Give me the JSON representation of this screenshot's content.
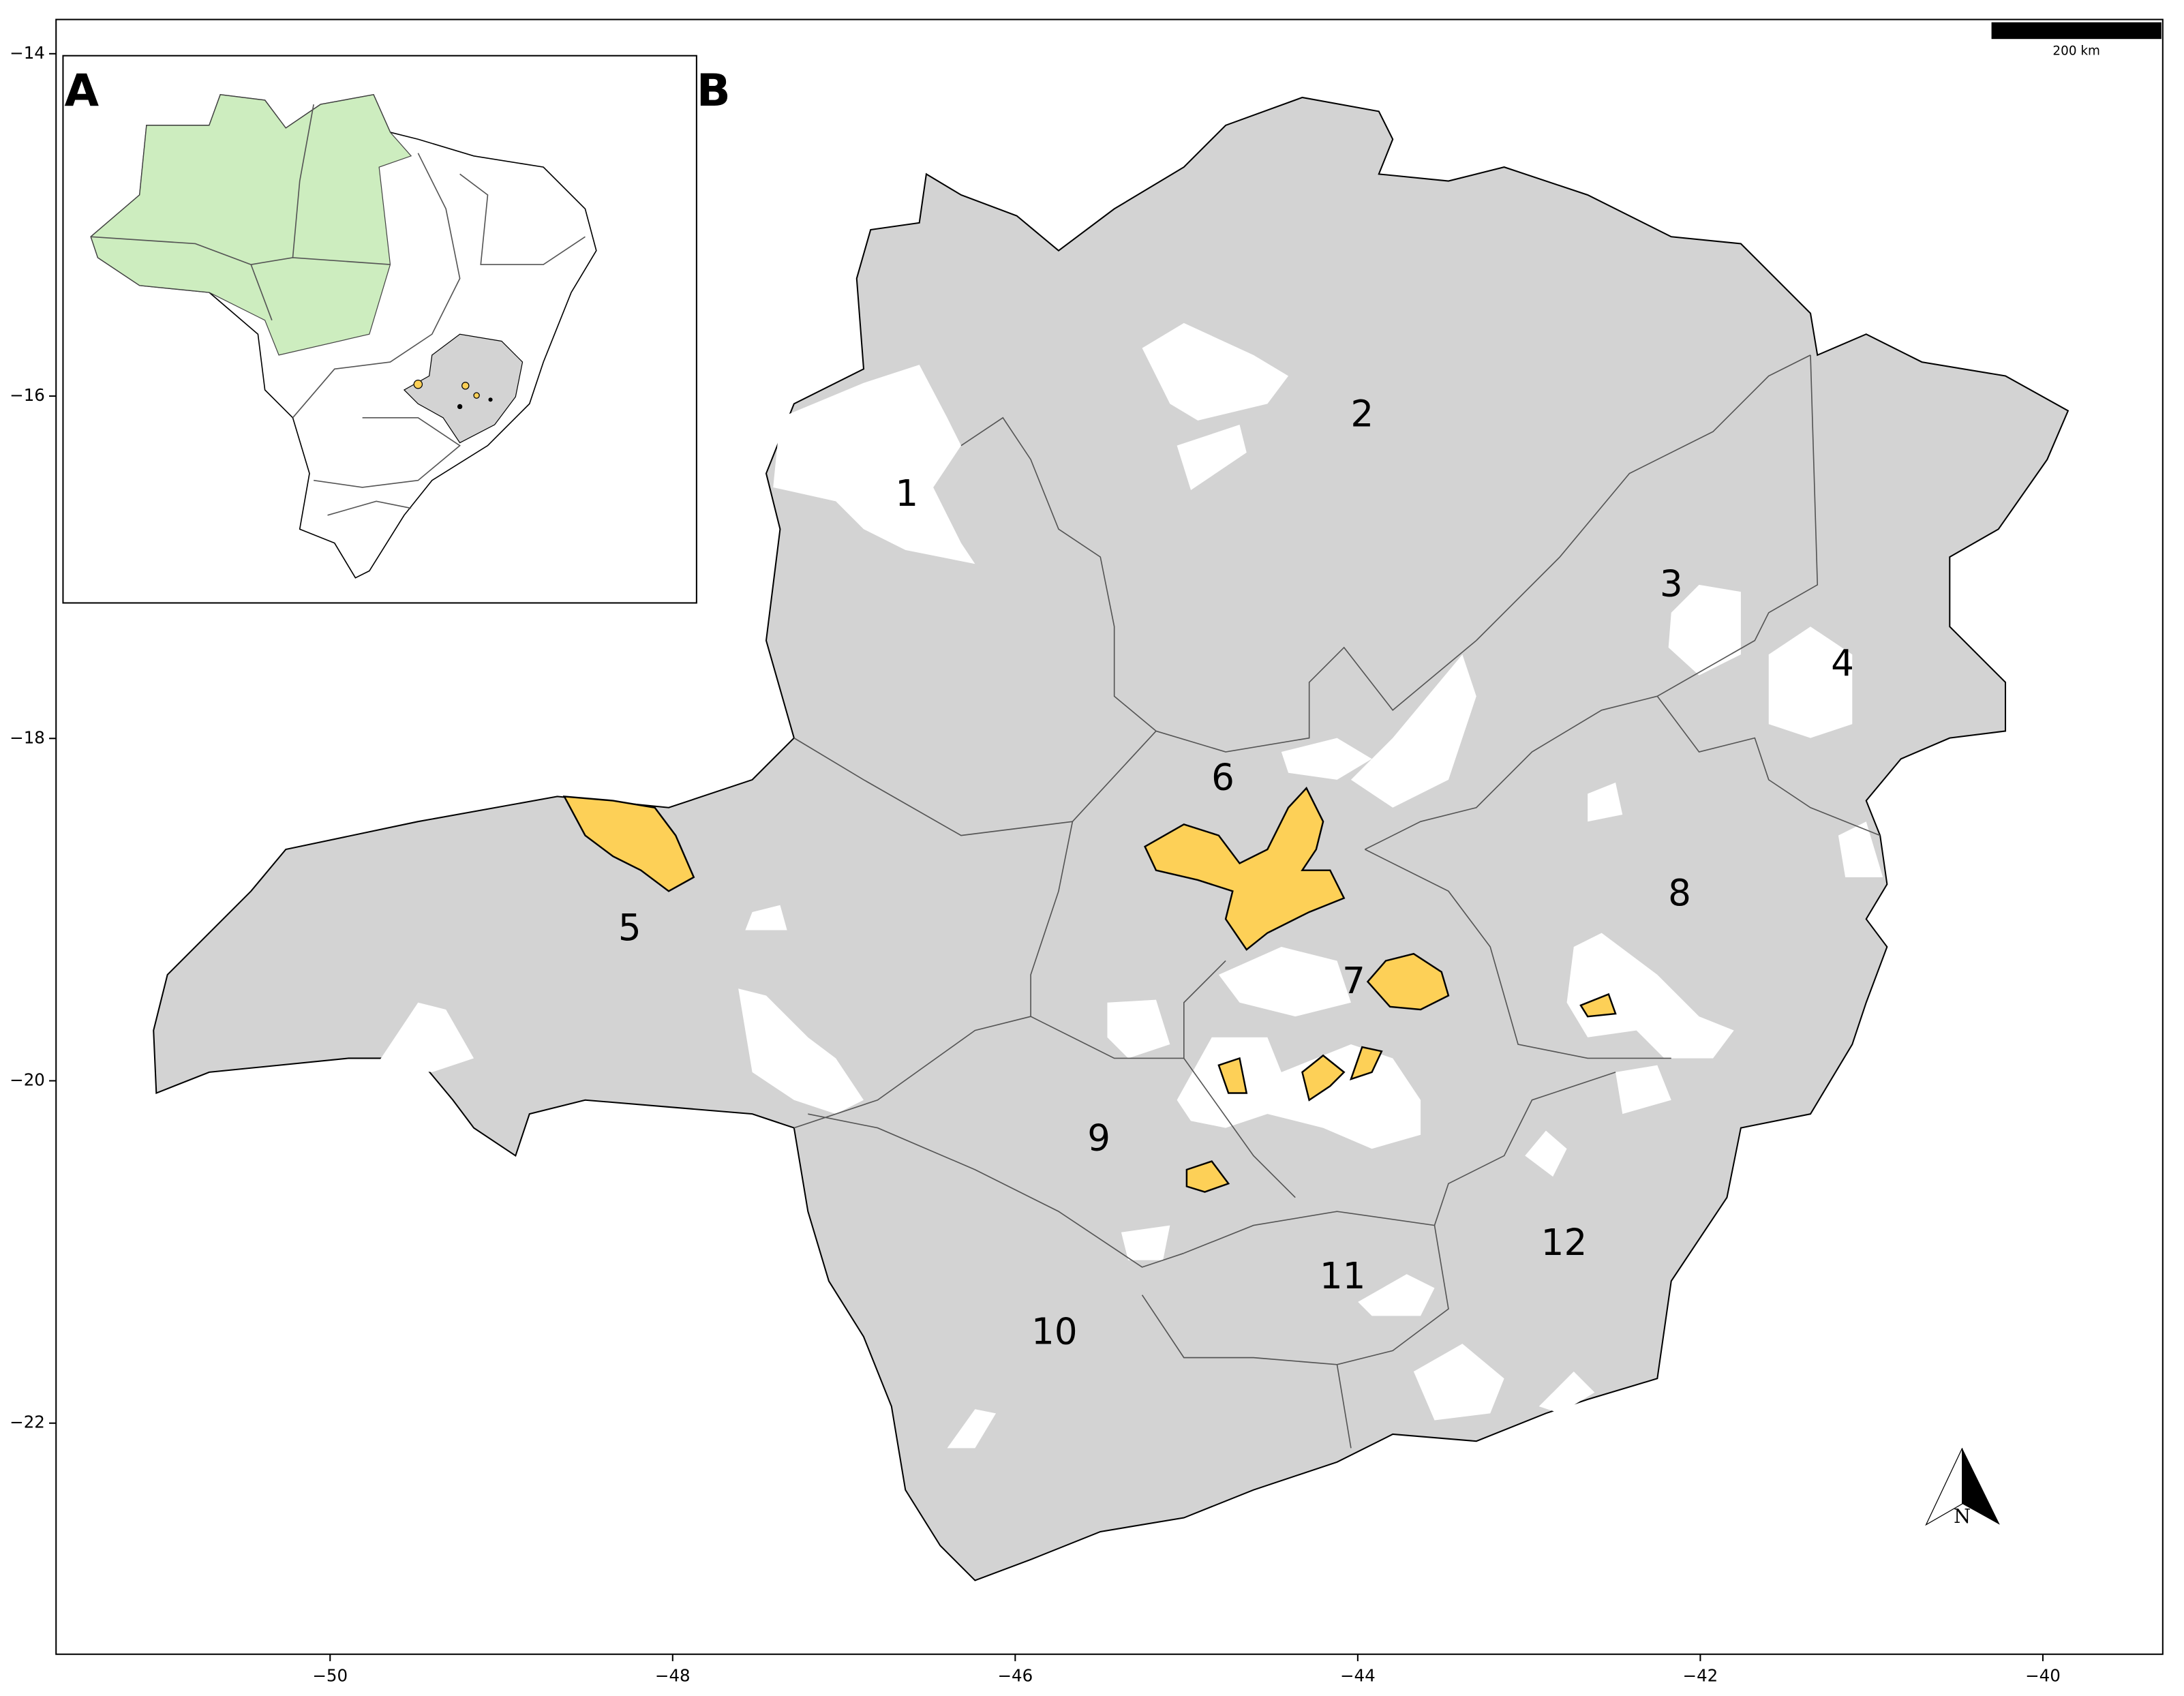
{
  "map": {
    "panels": [
      "A",
      "B"
    ],
    "xlim": [
      -51.6,
      -39.3
    ],
    "ylim": [
      -23.35,
      -13.8
    ],
    "xticks": [
      {
        "value": -50,
        "label": "−50"
      },
      {
        "value": -48,
        "label": "−48"
      },
      {
        "value": -46,
        "label": "−46"
      },
      {
        "value": -44,
        "label": "−44"
      },
      {
        "value": -42,
        "label": "−42"
      },
      {
        "value": -40,
        "label": "−40"
      }
    ],
    "yticks": [
      {
        "value": -14,
        "label": "−14"
      },
      {
        "value": -16,
        "label": "−16"
      },
      {
        "value": -18,
        "label": "−18"
      },
      {
        "value": -20,
        "label": "−20"
      },
      {
        "value": -22,
        "label": "−22"
      }
    ],
    "regions": [
      "1",
      "2",
      "3",
      "4",
      "5",
      "6",
      "7",
      "8",
      "9",
      "10",
      "11",
      "12"
    ],
    "scale_bar": "200 km",
    "north": "N"
  }
}
